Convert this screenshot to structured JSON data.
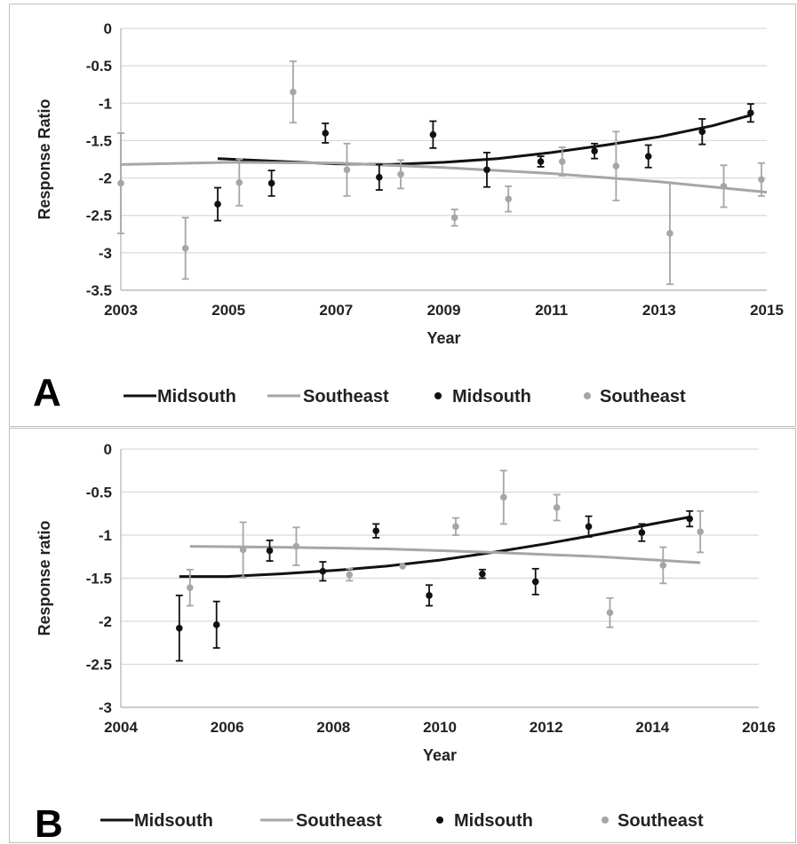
{
  "chart_data": [
    {
      "panel_label": "A",
      "type": "scatter",
      "xlabel": "Year",
      "ylabel": "Response Ratio",
      "xlim": [
        2003,
        2015
      ],
      "ylim": [
        -3.5,
        0
      ],
      "x_ticks": [
        2003,
        2005,
        2007,
        2009,
        2011,
        2013,
        2015
      ],
      "y_ticks": [
        0,
        -0.5,
        -1,
        -1.5,
        -2,
        -2.5,
        -3,
        -3.5
      ],
      "grid": true,
      "legend_position": "bottom",
      "series": [
        {
          "name": "Midsouth",
          "kind": "points",
          "color": "#111111",
          "points": [
            {
              "x": 2004.8,
              "y": -2.35,
              "err": 0.22
            },
            {
              "x": 2005.8,
              "y": -2.07,
              "err": 0.17
            },
            {
              "x": 2006.8,
              "y": -1.4,
              "err": 0.13
            },
            {
              "x": 2007.8,
              "y": -1.99,
              "err": 0.17
            },
            {
              "x": 2008.8,
              "y": -1.42,
              "err": 0.18
            },
            {
              "x": 2009.8,
              "y": -1.89,
              "err": 0.23
            },
            {
              "x": 2010.8,
              "y": -1.78,
              "err": 0.07
            },
            {
              "x": 2011.8,
              "y": -1.64,
              "err": 0.1
            },
            {
              "x": 2012.8,
              "y": -1.71,
              "err": 0.15
            },
            {
              "x": 2013.8,
              "y": -1.38,
              "err": 0.17
            },
            {
              "x": 2014.7,
              "y": -1.13,
              "err": 0.12
            }
          ]
        },
        {
          "name": "Southeast",
          "kind": "points",
          "color": "#a6a6a6",
          "points": [
            {
              "x": 2003.0,
              "y": -2.07,
              "err": 0.67
            },
            {
              "x": 2004.2,
              "y": -2.94,
              "err": 0.41
            },
            {
              "x": 2005.2,
              "y": -2.06,
              "err": 0.31
            },
            {
              "x": 2006.2,
              "y": -0.85,
              "err": 0.41
            },
            {
              "x": 2007.2,
              "y": -1.89,
              "err": 0.35
            },
            {
              "x": 2008.2,
              "y": -1.95,
              "err": 0.19
            },
            {
              "x": 2009.2,
              "y": -2.53,
              "err": 0.11
            },
            {
              "x": 2010.2,
              "y": -2.28,
              "err": 0.17
            },
            {
              "x": 2011.2,
              "y": -1.78,
              "err": 0.19
            },
            {
              "x": 2012.2,
              "y": -1.84,
              "err": 0.46
            },
            {
              "x": 2013.2,
              "y": -2.74,
              "err": 0.68
            },
            {
              "x": 2014.2,
              "y": -2.11,
              "err": 0.28
            },
            {
              "x": 2014.9,
              "y": -2.02,
              "err": 0.22
            }
          ]
        },
        {
          "name": "Midsouth",
          "kind": "trendline",
          "color": "#111111",
          "points": [
            {
              "x": 2004.8,
              "y": -1.74
            },
            {
              "x": 2006.0,
              "y": -1.78
            },
            {
              "x": 2007.0,
              "y": -1.81
            },
            {
              "x": 2008.0,
              "y": -1.82
            },
            {
              "x": 2009.0,
              "y": -1.79
            },
            {
              "x": 2010.0,
              "y": -1.74
            },
            {
              "x": 2011.0,
              "y": -1.66
            },
            {
              "x": 2012.0,
              "y": -1.56
            },
            {
              "x": 2013.0,
              "y": -1.45
            },
            {
              "x": 2014.0,
              "y": -1.3
            },
            {
              "x": 2014.7,
              "y": -1.16
            }
          ]
        },
        {
          "name": "Southeast",
          "kind": "trendline",
          "color": "#a6a6a6",
          "points": [
            {
              "x": 2003.0,
              "y": -1.82
            },
            {
              "x": 2005.0,
              "y": -1.79
            },
            {
              "x": 2007.0,
              "y": -1.8
            },
            {
              "x": 2009.0,
              "y": -1.86
            },
            {
              "x": 2011.0,
              "y": -1.94
            },
            {
              "x": 2013.0,
              "y": -2.05
            },
            {
              "x": 2015.0,
              "y": -2.19
            }
          ]
        }
      ]
    },
    {
      "panel_label": "B",
      "type": "scatter",
      "xlabel": "Year",
      "ylabel": "Response ratio",
      "xlim": [
        2004,
        2016
      ],
      "ylim": [
        -3,
        0
      ],
      "x_ticks": [
        2004,
        2006,
        2008,
        2010,
        2012,
        2014,
        2016
      ],
      "y_ticks": [
        0,
        -0.5,
        -1,
        -1.5,
        -2,
        -2.5,
        -3
      ],
      "grid": true,
      "legend_position": "bottom",
      "series": [
        {
          "name": "Midsouth",
          "kind": "points",
          "color": "#111111",
          "points": [
            {
              "x": 2005.1,
              "y": -2.08,
              "err": 0.38
            },
            {
              "x": 2005.8,
              "y": -2.04,
              "err": 0.27
            },
            {
              "x": 2006.8,
              "y": -1.18,
              "err": 0.12
            },
            {
              "x": 2007.8,
              "y": -1.42,
              "err": 0.11
            },
            {
              "x": 2008.8,
              "y": -0.95,
              "err": 0.08
            },
            {
              "x": 2009.8,
              "y": -1.7,
              "err": 0.12
            },
            {
              "x": 2010.8,
              "y": -1.45,
              "err": 0.05
            },
            {
              "x": 2011.8,
              "y": -1.54,
              "err": 0.15
            },
            {
              "x": 2012.8,
              "y": -0.9,
              "err": 0.12
            },
            {
              "x": 2013.8,
              "y": -0.97,
              "err": 0.1
            },
            {
              "x": 2014.7,
              "y": -0.81,
              "err": 0.09
            }
          ]
        },
        {
          "name": "Southeast",
          "kind": "points",
          "color": "#a6a6a6",
          "points": [
            {
              "x": 2005.3,
              "y": -1.61,
              "err": 0.21
            },
            {
              "x": 2006.3,
              "y": -1.17,
              "err": 0.32
            },
            {
              "x": 2007.3,
              "y": -1.13,
              "err": 0.22
            },
            {
              "x": 2008.3,
              "y": -1.46,
              "err": 0.07
            },
            {
              "x": 2009.3,
              "y": -1.36,
              "err": 0.0
            },
            {
              "x": 2010.3,
              "y": -0.9,
              "err": 0.1
            },
            {
              "x": 2011.2,
              "y": -0.56,
              "err": 0.31
            },
            {
              "x": 2012.2,
              "y": -0.68,
              "err": 0.15
            },
            {
              "x": 2013.2,
              "y": -1.9,
              "err": 0.17
            },
            {
              "x": 2014.2,
              "y": -1.35,
              "err": 0.21
            },
            {
              "x": 2014.9,
              "y": -0.96,
              "err": 0.24
            }
          ]
        },
        {
          "name": "Midsouth",
          "kind": "trendline",
          "color": "#111111",
          "points": [
            {
              "x": 2005.1,
              "y": -1.48
            },
            {
              "x": 2006.0,
              "y": -1.48
            },
            {
              "x": 2007.0,
              "y": -1.45
            },
            {
              "x": 2008.0,
              "y": -1.41
            },
            {
              "x": 2009.0,
              "y": -1.36
            },
            {
              "x": 2010.0,
              "y": -1.29
            },
            {
              "x": 2011.0,
              "y": -1.2
            },
            {
              "x": 2012.0,
              "y": -1.1
            },
            {
              "x": 2013.0,
              "y": -0.99
            },
            {
              "x": 2014.0,
              "y": -0.87
            },
            {
              "x": 2014.7,
              "y": -0.79
            }
          ]
        },
        {
          "name": "Southeast",
          "kind": "trendline",
          "color": "#a6a6a6",
          "points": [
            {
              "x": 2005.3,
              "y": -1.13
            },
            {
              "x": 2007.0,
              "y": -1.14
            },
            {
              "x": 2009.0,
              "y": -1.16
            },
            {
              "x": 2011.0,
              "y": -1.2
            },
            {
              "x": 2013.0,
              "y": -1.25
            },
            {
              "x": 2014.9,
              "y": -1.32
            }
          ]
        }
      ],
      "legend": [
        {
          "label": "Midsouth",
          "kind": "line",
          "color": "#111111"
        },
        {
          "label": "Southeast",
          "kind": "line",
          "color": "#a6a6a6"
        },
        {
          "label": "Midsouth",
          "kind": "marker",
          "color": "#111111"
        },
        {
          "label": "Southeast",
          "kind": "marker",
          "color": "#a6a6a6"
        }
      ]
    }
  ],
  "panels": {
    "a": {
      "label": "A",
      "legend": {
        "l1": "Midsouth",
        "l2": "Southeast",
        "l3": "Midsouth",
        "l4": "Southeast"
      }
    },
    "b": {
      "label": "B",
      "legend": {
        "l1": "Midsouth",
        "l2": "Southeast",
        "l3": "Midsouth",
        "l4": "Southeast"
      }
    }
  }
}
